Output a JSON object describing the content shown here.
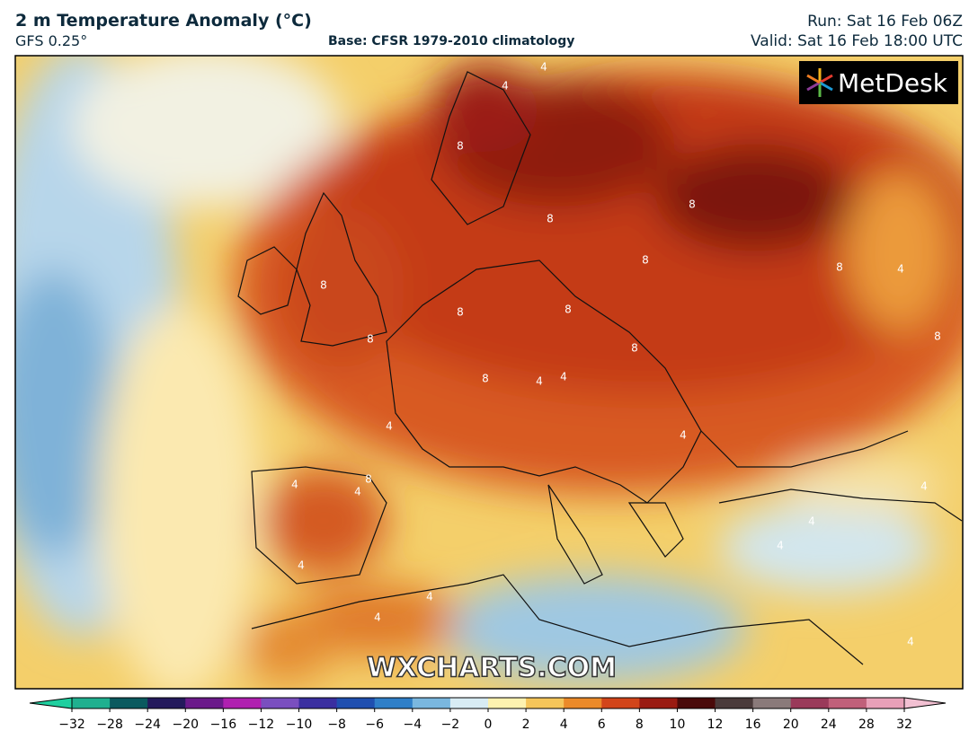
{
  "header": {
    "title": "2 m Temperature Anomaly (°C)",
    "model": "GFS 0.25°",
    "base": "Base: CFSR 1979-2010 climatology",
    "run": "Run: Sat 16 Feb 06Z",
    "valid": "Valid: Sat 16 Feb 18:00 UTC"
  },
  "logo": "MetDesk",
  "watermark": "WXCHARTS.COM",
  "contour_labels": [
    "4",
    "4",
    "8",
    "8",
    "8",
    "8",
    "8",
    "8",
    "8",
    "8",
    "4",
    "8",
    "8",
    "8",
    "4",
    "4",
    "4",
    "8",
    "4",
    "4",
    "4",
    "4",
    "4",
    "4",
    "4",
    "4",
    "8",
    "4",
    "4"
  ],
  "colorbar": {
    "under_color": "#1fcf9f",
    "over_color": "#f2c0d2",
    "colors": [
      "#1fb08f",
      "#0b5a5f",
      "#241a5c",
      "#6b1a8a",
      "#b020b0",
      "#7a4fbf",
      "#3a2fa0",
      "#1f4fb0",
      "#2f7fc8",
      "#7ab7df",
      "#d8ecf4",
      "#fdf2b0",
      "#f5c55a",
      "#eb8a2a",
      "#d2451a",
      "#9a1b12",
      "#4a0a0a",
      "#4a3a3a",
      "#8a7a7a",
      "#9a3a5a",
      "#c0607a",
      "#e8a0b8"
    ],
    "ticks": [
      {
        "value": -32,
        "label": "−32"
      },
      {
        "value": -28,
        "label": "−28"
      },
      {
        "value": -24,
        "label": "−24"
      },
      {
        "value": -20,
        "label": "−20"
      },
      {
        "value": -16,
        "label": "−16"
      },
      {
        "value": -12,
        "label": "−12"
      },
      {
        "value": -10,
        "label": "−10"
      },
      {
        "value": -8,
        "label": "−8"
      },
      {
        "value": -6,
        "label": "−6"
      },
      {
        "value": -4,
        "label": "−4"
      },
      {
        "value": -2,
        "label": "−2"
      },
      0,
      2,
      4,
      6,
      8,
      10,
      12,
      16,
      20,
      24,
      28,
      32
    ]
  }
}
